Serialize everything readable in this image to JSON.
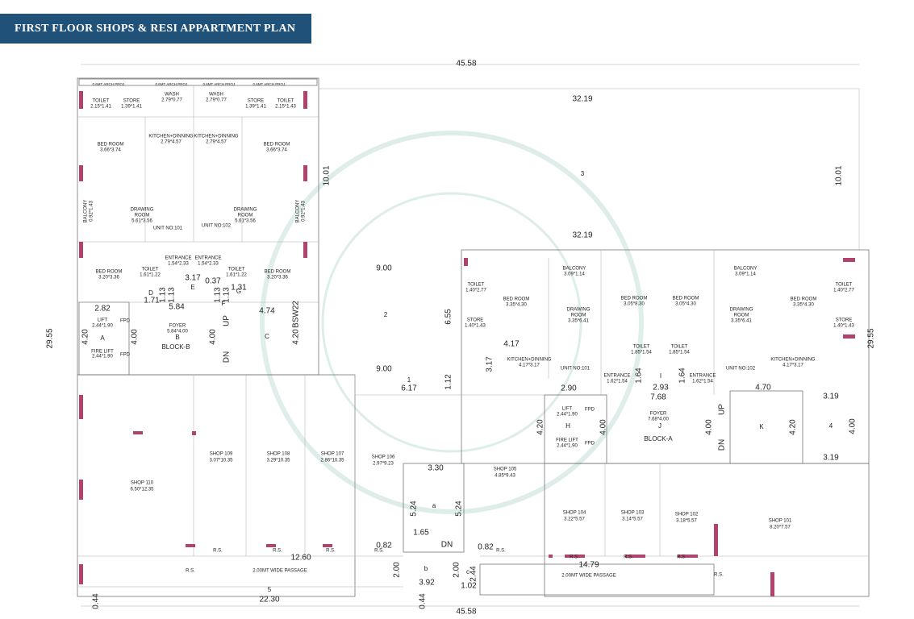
{
  "header": {
    "title": "FIRST FLOOR SHOPS  & RESI APPARTMENT  PLAN"
  },
  "labels": [
    "45.58",
    "32.19",
    "10.01",
    "10.01",
    "3",
    "32.19",
    "9.00",
    "2",
    "9.00",
    "6.55",
    "3.17",
    "1.12",
    "1",
    "6.17",
    "0.6MT ARCH PROJ.",
    "0.6MT ARCH PROJ.",
    "0.6MT ARCH PROJ.",
    "0.6MT ARCH PROJ.",
    "WASH",
    "2.79*0.77",
    "WASH",
    "2.79*0.77",
    "TOILET",
    "2.15*1.41",
    "STORE",
    "1.39*1.41",
    "STORE",
    "1.39*1.41",
    "TOILET",
    "2.15*1.43",
    "KITCHEN+DINNING",
    "2.79*4.57",
    "KITCHEN+DINNING",
    "2.79*4.57",
    "BED ROOM",
    "3.66*3.74",
    "BED ROOM",
    "3.66*3.74",
    "BALCONY",
    "0.92*1.43",
    "BALCONY",
    "0.92*1.43",
    "DRAWING",
    "ROOM",
    "5.61*3.56",
    "DRAWING",
    "ROOM",
    "5.61*3.56",
    "UNIT NO:101",
    "UNIT NO:102",
    "BED ROOM",
    "3.20*3.36",
    "BED ROOM",
    "3.20*3.36",
    "TOILET",
    "1.61*1.22",
    "TOILET",
    "1.61*1.22",
    "ENTRANCE",
    "1.54*2.33",
    "ENTRANCE",
    "1.54*2.33",
    "3.17",
    "0.37",
    "1.31",
    "D",
    "E",
    "G",
    "F",
    "1.13",
    "1.13",
    "1.13",
    "1.13",
    "1.71",
    "2.82",
    "5.84",
    "4.74",
    "BSW22",
    "LIFT",
    "2.44*1.90",
    "A",
    "FIRE LIFT",
    "2.44*1.90",
    "FPD",
    "FPD",
    "4.20",
    "4.00",
    "FOYER",
    "5.84*4.00",
    "B",
    "BLOCK-B",
    "UP",
    "DN",
    "4.00",
    "C",
    "4.20",
    "SHOP 110",
    "6.50*12.35",
    "SHOP 109",
    "3.07*10.35",
    "SHOP 108",
    "3.29*10.35",
    "SHOP 107",
    "2.86*10.35",
    "SHOP 106",
    "2.97*9.23",
    "SHOP 105",
    "4.85*9.43",
    "R.S.",
    "R.S.",
    "R.S.",
    "R.S.",
    "R.S.",
    "12.60",
    "2.00MT WIDE  PASSAGE",
    "5",
    "22.30",
    "0.44",
    "0.44",
    "0.82",
    "3.30",
    "5.24",
    "5.24",
    "a",
    "1.65",
    "DN",
    "b",
    "2.00",
    "3.92",
    "2.00",
    "2.44",
    "1.02",
    "45.58",
    "29.55",
    "29.55",
    "TOILET",
    "1.40*2.77",
    "BED ROOM",
    "3.35*4.30",
    "BALCONY",
    "3.09*1.14",
    "DRAWING",
    "ROOM",
    "3.35*6.41",
    "STORE",
    "1.40*1.43",
    "4.17",
    "KITCHEN+DINNING",
    "4.17*3.17",
    "UNIT NO:101",
    "BED ROOM",
    "3.05*8.30",
    "BED ROOM",
    "3.05*4.30",
    "DRAWING",
    "ROOM",
    "3.35*6.41",
    "BALCONY",
    "3.09*1.14",
    "BED ROOM",
    "3.35*4.30",
    "TOILET",
    "1.40*2.77",
    "STORE",
    "1.40*1.43",
    "TOILET",
    "1.85*1.54",
    "TOILET",
    "1.85*1.54",
    "KITCHEN+DINNING",
    "4.17*3.17",
    "UNIT NO:102",
    "ENTRANCE",
    "1.62*1.54",
    "ENTRANCE",
    "1.62*1.54",
    "1.64",
    "1.64",
    "I",
    "2.93",
    "7.68",
    "2.90",
    "4.70",
    "3.19",
    "4",
    "4.00",
    "3.19",
    "4.20",
    "K",
    "UP",
    "DN",
    "4.00",
    "FOYER",
    "7.68*4.00",
    "J",
    "BLOCK-A",
    "LIFT",
    "2.44*1.90",
    "H",
    "FIRE LIFT",
    "2.44*1.90",
    "FPD",
    "FPD",
    "4.20",
    "4.00",
    "SHOP 104",
    "3.22*5.57",
    "SHOP 103",
    "3.14*5.57",
    "SHOP 102",
    "3.18*5.57",
    "SHOP 101",
    "8.20*7.57",
    "R.S.",
    "R.S.",
    "R.S.",
    "R.S.",
    "R.S.",
    "0.82",
    "14.79",
    "2.00MT WIDE  PASSAGE",
    "c"
  ]
}
